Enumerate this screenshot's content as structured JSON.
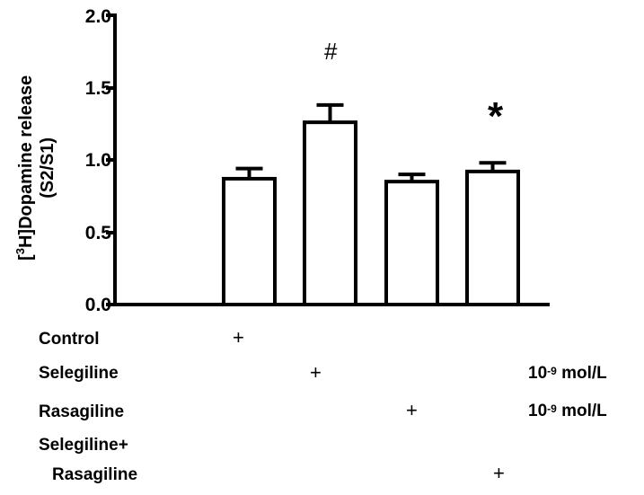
{
  "chart_data": {
    "type": "bar",
    "title": "",
    "xlabel": "",
    "ylabel": "[3H]Dopamine release (S2/S1)",
    "ylabel_parts": {
      "open": "[",
      "sup": "3",
      "rest": "H]Dopamine release",
      "line2": "(S2/S1)"
    },
    "ylim": [
      0,
      2.0
    ],
    "yticks": [
      "0.0",
      "0.5",
      "1.0",
      "1.5",
      "2.0"
    ],
    "grid": false,
    "legend": null,
    "categories": [
      "Control",
      "Selegiline",
      "Rasagiline",
      "Selegiline+Rasagiline"
    ],
    "values": [
      0.87,
      1.26,
      0.85,
      0.92
    ],
    "error_upper": [
      0.94,
      1.38,
      0.9,
      0.98
    ],
    "annotations": [
      {
        "bar_index": 1,
        "symbol": "#"
      },
      {
        "bar_index": 3,
        "symbol": "*"
      }
    ],
    "treatment_table": {
      "rows": [
        {
          "label": "Control",
          "plus_at": 0,
          "conc": ""
        },
        {
          "label": "Selegiline",
          "plus_at": 1,
          "conc": "10-9 mol/L"
        },
        {
          "label": "Rasagiline",
          "plus_at": 2,
          "conc": "10-9 mol/L"
        },
        {
          "label": "Selegiline+",
          "plus_at": null,
          "conc": ""
        },
        {
          "label": "Rasagiline",
          "plus_at": 3,
          "conc": ""
        }
      ],
      "plus_symbol": "+",
      "conc_base": "10",
      "conc_exp": "-9",
      "conc_unit": " mol/L"
    }
  }
}
